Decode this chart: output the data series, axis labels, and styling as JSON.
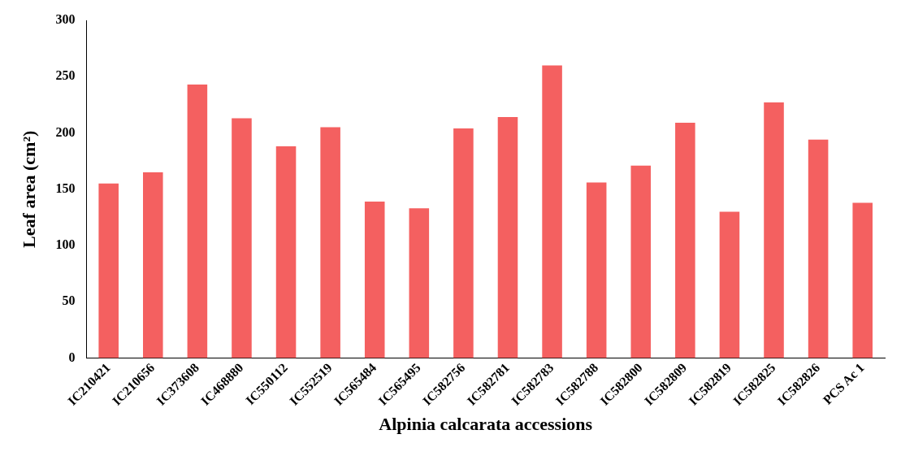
{
  "chart_data": {
    "type": "bar",
    "xlabel": "Alpinia calcarata accessions",
    "ylabel": "Leaf area (cm²)",
    "categories": [
      "IC210421",
      "IC210656",
      "IC373608",
      "IC468880",
      "IC550112",
      "IC552519",
      "IC565484",
      "IC565495",
      "IC582756",
      "IC582781",
      "IC582783",
      "IC582788",
      "IC582800",
      "IC582809",
      "IC582819",
      "IC582825",
      "IC582826",
      "PCS Ac 1"
    ],
    "values": [
      155,
      165,
      243,
      213,
      188,
      205,
      139,
      133,
      204,
      214,
      260,
      156,
      171,
      209,
      130,
      227,
      194,
      138
    ],
    "color": "#f46060",
    "ylim": [
      0,
      300
    ],
    "yticks": [
      0,
      50,
      100,
      150,
      200,
      250,
      300
    ],
    "grid": false,
    "legend": false
  }
}
